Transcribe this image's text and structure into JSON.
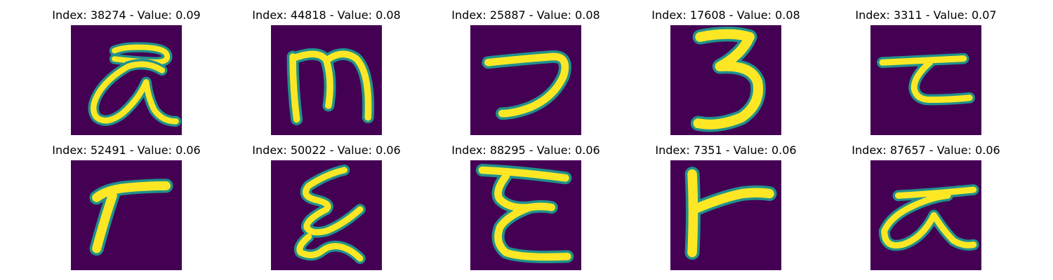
{
  "colors": {
    "background": "#440154",
    "stroke_mid": "#21918c",
    "stroke_core": "#fde725"
  },
  "panels": [
    {
      "index_label": "Index: 38274 - Value: 0.09",
      "glyph": "alpha-ring-glyph"
    },
    {
      "index_label": "Index: 44818 - Value: 0.08",
      "glyph": "m-glyph"
    },
    {
      "index_label": "Index: 25887 - Value: 0.08",
      "glyph": "hook-glyph"
    },
    {
      "index_label": "Index: 17608 - Value: 0.08",
      "glyph": "three-glyph"
    },
    {
      "index_label": "Index: 3311 - Value: 0.07",
      "glyph": "tau-glyph"
    },
    {
      "index_label": "Index: 52491 - Value: 0.06",
      "glyph": "gamma-glyph"
    },
    {
      "index_label": "Index: 50022 - Value: 0.06",
      "glyph": "xi-glyph"
    },
    {
      "index_label": "Index: 88295 - Value: 0.06",
      "glyph": "epsilon-glyph"
    },
    {
      "index_label": "Index: 7351 - Value: 0.06",
      "glyph": "t-glyph"
    },
    {
      "index_label": "Index: 87657 - Value: 0.06",
      "glyph": "alpha-bar-glyph"
    }
  ]
}
